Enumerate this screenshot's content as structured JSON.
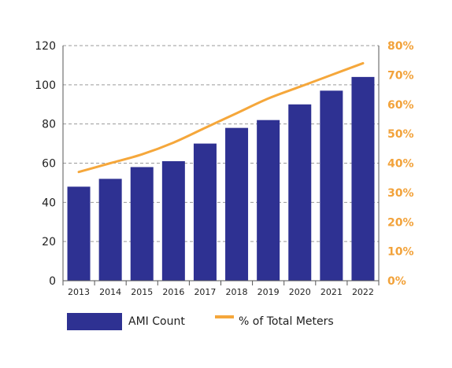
{
  "chart_data": {
    "type": "bar",
    "categories": [
      "2013",
      "2014",
      "2015",
      "2016",
      "2017",
      "2018",
      "2019",
      "2020",
      "2021",
      "2022"
    ],
    "series": [
      {
        "name": "AMI Count",
        "type": "bar",
        "axis": "left",
        "color": "#2e3192",
        "values": [
          48,
          52,
          58,
          61,
          70,
          78,
          82,
          90,
          97,
          104
        ]
      },
      {
        "name": "% of Total Meters",
        "type": "line",
        "axis": "right",
        "color": "#f5a73b",
        "values": [
          37,
          40,
          43,
          47,
          52,
          57,
          62,
          66,
          70,
          74
        ]
      }
    ],
    "y_left": {
      "min": 0,
      "max": 120,
      "ticks": [
        "0",
        "20",
        "40",
        "60",
        "80",
        "100",
        "120"
      ]
    },
    "y_right": {
      "min": 0,
      "max": 80,
      "ticks": [
        "0%",
        "10%",
        "20%",
        "30%",
        "40%",
        "50%",
        "60%",
        "70%",
        "80%"
      ]
    },
    "grid": "dashed-horizontal",
    "legend": "bottom-left"
  }
}
